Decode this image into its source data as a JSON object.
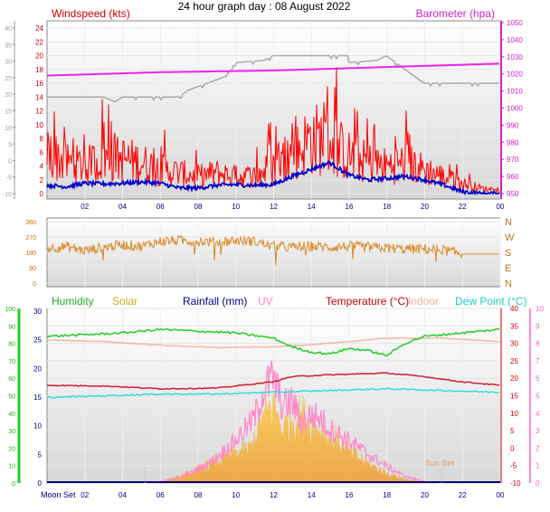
{
  "title": "24 hour graph day : 08 August 2022",
  "colors": {
    "wind": "#ff0000",
    "gust_line": "#0000cc",
    "baro": "#ee22ee",
    "grey_line": "#aaaaaa",
    "winddir": "#d98a2a",
    "humidity": "#22cc22",
    "solar": "#f5c142",
    "rain": "#000080",
    "uv": "#ff88cc",
    "temp": "#d02030",
    "indoor": "#f0b8a0",
    "dewpoint": "#33dddd",
    "plot_top": "#ffffff",
    "plot_bottom": "#d8d8d8"
  },
  "chart_data": [
    {
      "type": "line",
      "labels": {
        "left": "Windspeed (kts)",
        "right": "Barometer (hpa)"
      },
      "left_axis_outer_ticks": [
        "40",
        "35",
        "30",
        "25",
        "20",
        "15",
        "10",
        "5",
        "0",
        "-5",
        "-10"
      ],
      "left_axis_inner_ticks": [
        "24",
        "22",
        "20",
        "18",
        "16",
        "14",
        "12",
        "10",
        "8",
        "6",
        "4",
        "2",
        "0"
      ],
      "right_axis_ticks": [
        "1050",
        "1040",
        "1030",
        "1020",
        "1010",
        "1000",
        "990",
        "980",
        "970",
        "960",
        "950"
      ],
      "x_ticks": [
        "02",
        "04",
        "06",
        "08",
        "10",
        "12",
        "14",
        "16",
        "18",
        "20",
        "22",
        "00"
      ],
      "xlim": [
        0,
        24
      ],
      "ylim_outer": [
        -10,
        40
      ],
      "ylim_inner": [
        0,
        24
      ],
      "ylim_baro": [
        950,
        1050
      ],
      "series": [
        {
          "id": "wind",
          "points": [
            [
              0,
              6
            ],
            [
              1,
              4.5
            ],
            [
              2,
              4
            ],
            [
              3,
              5
            ],
            [
              4,
              5
            ],
            [
              5,
              4.5
            ],
            [
              6,
              3.5
            ],
            [
              7,
              3
            ],
            [
              8,
              2.5
            ],
            [
              9,
              3
            ],
            [
              10,
              2.5
            ],
            [
              11,
              2.5
            ],
            [
              12,
              4
            ],
            [
              13,
              5.5
            ],
            [
              14,
              8
            ],
            [
              15,
              7.5
            ],
            [
              16,
              5.5
            ],
            [
              17,
              4.5
            ],
            [
              18,
              4
            ],
            [
              19,
              4.5
            ],
            [
              20,
              3.5
            ],
            [
              21,
              2.5
            ],
            [
              22,
              1.5
            ],
            [
              23,
              0.8
            ],
            [
              24,
              0.3
            ]
          ]
        },
        {
          "id": "gust_line",
          "points": [
            [
              0,
              1.2
            ],
            [
              1,
              1
            ],
            [
              2,
              1.5
            ],
            [
              3,
              1.4
            ],
            [
              4,
              1.5
            ],
            [
              5,
              1.7
            ],
            [
              6,
              1.5
            ],
            [
              7,
              0.8
            ],
            [
              8,
              0.8
            ],
            [
              9,
              1.2
            ],
            [
              10,
              1.3
            ],
            [
              11,
              1.2
            ],
            [
              12,
              1.3
            ],
            [
              13,
              2.5
            ],
            [
              14,
              3.5
            ],
            [
              15,
              4.5
            ],
            [
              16,
              2.7
            ],
            [
              17,
              2
            ],
            [
              18,
              2.2
            ],
            [
              19,
              2.5
            ],
            [
              20,
              2
            ],
            [
              21,
              1.3
            ],
            [
              22,
              0.3
            ],
            [
              23,
              0
            ],
            [
              24,
              0
            ]
          ]
        },
        {
          "id": "grey_line",
          "points": [
            [
              0,
              14
            ],
            [
              3,
              14
            ],
            [
              3.6,
              13.3
            ],
            [
              4,
              14
            ],
            [
              7,
              14
            ],
            [
              7.5,
              15
            ],
            [
              8.5,
              16
            ],
            [
              9.5,
              17
            ],
            [
              10,
              19
            ],
            [
              11.5,
              19.3
            ],
            [
              12,
              20
            ],
            [
              16,
              20
            ],
            [
              16,
              19
            ],
            [
              17.5,
              19.3
            ],
            [
              18,
              20
            ],
            [
              19,
              18
            ],
            [
              20,
              16
            ],
            [
              24,
              16
            ]
          ]
        },
        {
          "id": "baro",
          "points": [
            [
              0,
              1019
            ],
            [
              6,
              1021
            ],
            [
              12,
              1022
            ],
            [
              18,
              1024
            ],
            [
              24,
              1026
            ]
          ]
        }
      ]
    },
    {
      "type": "scatter",
      "left_axis_ticks": [
        "360",
        "270",
        "180",
        "90",
        "0"
      ],
      "right_axis_ticks": [
        "N",
        "W",
        "S",
        "E",
        "N"
      ],
      "xlim": [
        0,
        24
      ],
      "ylim": [
        0,
        360
      ],
      "series": [
        {
          "id": "winddir",
          "points": [
            [
              0,
              205
            ],
            [
              1,
              215
            ],
            [
              2,
              190
            ],
            [
              3,
              210
            ],
            [
              4,
              225
            ],
            [
              5,
              215
            ],
            [
              6,
              245
            ],
            [
              7,
              250
            ],
            [
              8,
              245
            ],
            [
              9,
              240
            ],
            [
              10,
              250
            ],
            [
              11,
              245
            ],
            [
              12,
              215
            ],
            [
              13,
              210
            ],
            [
              14,
              215
            ],
            [
              15,
              210
            ],
            [
              16,
              215
            ],
            [
              17,
              210
            ],
            [
              18,
              205
            ],
            [
              19,
              200
            ],
            [
              20,
              200
            ],
            [
              21,
              195
            ],
            [
              22,
              170
            ],
            [
              23,
              170
            ],
            [
              24,
              170
            ]
          ]
        }
      ]
    },
    {
      "type": "line",
      "legend": [
        "Humidity",
        "Solar",
        "Rainfall (mm)",
        "UV",
        "Temperature (°C)",
        "Indoor",
        "Dew Point (°C)"
      ],
      "left_axis_outer_ticks": [
        "100",
        "90",
        "80",
        "70",
        "60",
        "50",
        "40",
        "30",
        "20",
        "10",
        "0"
      ],
      "left_axis_inner_ticks": [
        "30",
        "25",
        "20",
        "15",
        "10",
        "5",
        "0"
      ],
      "right_axis_ticks": [
        "40",
        "35",
        "30",
        "25",
        "20",
        "15",
        "10",
        "5",
        "0",
        "-5",
        "-10"
      ],
      "uv_axis_ticks": [
        "10",
        "9",
        "8",
        "7",
        "6",
        "5",
        "4",
        "3",
        "2",
        "1",
        "0"
      ],
      "x_ticks": [
        "02",
        "04",
        "06",
        "08",
        "10",
        "12",
        "14",
        "16",
        "18",
        "20",
        "22",
        "00"
      ],
      "annotations": {
        "moon_set": "Moon Set",
        "sun_set": "Sun Set"
      },
      "xlim": [
        0,
        24
      ],
      "ylim_humidity": [
        0,
        100
      ],
      "ylim_temp": [
        -10,
        40
      ],
      "ylim_uv": [
        0,
        10
      ],
      "series": [
        {
          "id": "humidity",
          "points": [
            [
              0,
              84
            ],
            [
              2,
              85
            ],
            [
              4,
              86
            ],
            [
              6,
              88
            ],
            [
              8,
              87
            ],
            [
              10,
              86
            ],
            [
              12,
              83
            ],
            [
              13,
              78
            ],
            [
              14,
              75
            ],
            [
              15,
              74
            ],
            [
              16,
              77
            ],
            [
              17,
              76
            ],
            [
              18,
              73
            ],
            [
              19,
              80
            ],
            [
              20,
              84
            ],
            [
              22,
              86
            ],
            [
              24,
              88
            ]
          ]
        },
        {
          "id": "indoor",
          "points": [
            [
              0,
              31
            ],
            [
              3,
              30.5
            ],
            [
              6,
              29.5
            ],
            [
              9,
              28.8
            ],
            [
              12,
              29
            ],
            [
              15,
              30
            ],
            [
              18,
              31.5
            ],
            [
              21,
              31.5
            ],
            [
              24,
              30.5
            ]
          ]
        },
        {
          "id": "temp",
          "points": [
            [
              0,
              18
            ],
            [
              3,
              17.8
            ],
            [
              6,
              17
            ],
            [
              9,
              17.2
            ],
            [
              12,
              19
            ],
            [
              13,
              20.5
            ],
            [
              15,
              21
            ],
            [
              18,
              21.5
            ],
            [
              20,
              20.5
            ],
            [
              22,
              19
            ],
            [
              24,
              18
            ]
          ]
        },
        {
          "id": "dewpoint",
          "points": [
            [
              0,
              14.5
            ],
            [
              3,
              15
            ],
            [
              6,
              15.5
            ],
            [
              9,
              15.5
            ],
            [
              12,
              16
            ],
            [
              15,
              16.5
            ],
            [
              18,
              17
            ],
            [
              21,
              16.5
            ],
            [
              24,
              16
            ]
          ]
        },
        {
          "id": "solar",
          "points": [
            [
              5.5,
              0
            ],
            [
              6,
              0.3
            ],
            [
              7,
              1.2
            ],
            [
              8,
              2.8
            ],
            [
              9,
              4.5
            ],
            [
              10,
              6
            ],
            [
              10.8,
              7
            ],
            [
              11.3,
              12
            ],
            [
              12,
              16
            ],
            [
              12.5,
              11
            ],
            [
              13,
              13
            ],
            [
              13.5,
              14
            ],
            [
              14,
              12
            ],
            [
              14.5,
              11
            ],
            [
              15,
              9
            ],
            [
              15.5,
              8.5
            ],
            [
              16,
              6.5
            ],
            [
              17,
              4
            ],
            [
              18,
              2
            ],
            [
              19,
              0.8
            ],
            [
              20,
              0.2
            ],
            [
              20.5,
              0
            ]
          ]
        },
        {
          "id": "uv",
          "points": [
            [
              5.5,
              0
            ],
            [
              7,
              0.3
            ],
            [
              8,
              0.8
            ],
            [
              9,
              1.5
            ],
            [
              10,
              2.5
            ],
            [
              11,
              3.8
            ],
            [
              11.5,
              5.5
            ],
            [
              12,
              6.2
            ],
            [
              12.5,
              4.5
            ],
            [
              13,
              4.8
            ],
            [
              13.5,
              3.5
            ],
            [
              14,
              4
            ],
            [
              14.5,
              3.8
            ],
            [
              15,
              3.2
            ],
            [
              16,
              2.5
            ],
            [
              17,
              1.7
            ],
            [
              18,
              1
            ],
            [
              19,
              0.4
            ],
            [
              20,
              0.1
            ],
            [
              20.5,
              0
            ]
          ]
        }
      ]
    }
  ]
}
